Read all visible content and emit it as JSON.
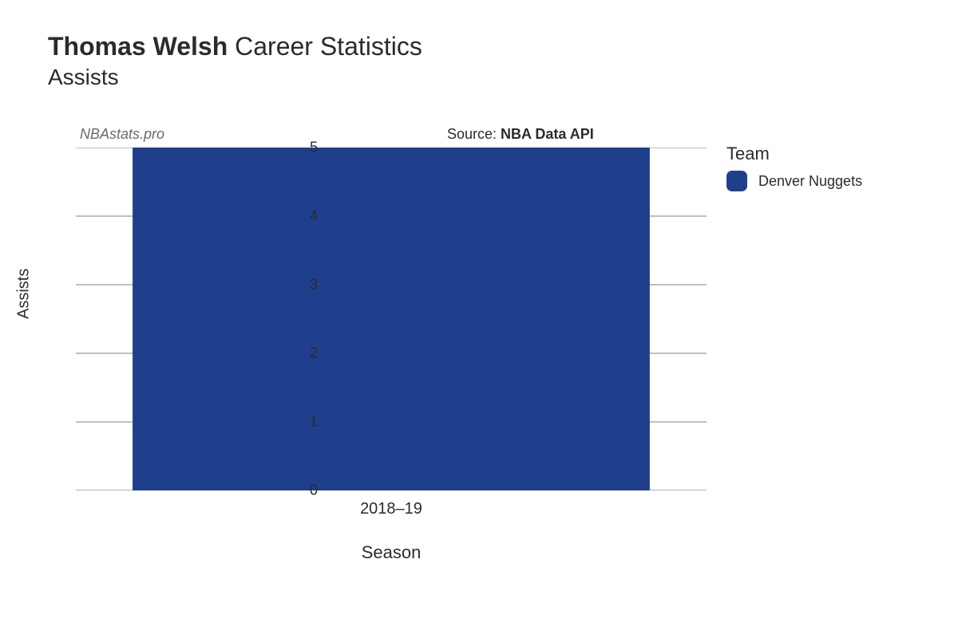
{
  "title": {
    "player_name": "Thomas Welsh",
    "suffix": "Career Statistics",
    "subtitle": "Assists"
  },
  "watermark": "NBAstats.pro",
  "source": {
    "prefix": "Source: ",
    "name": "NBA Data API"
  },
  "chart": {
    "type": "bar",
    "background_color": "#ffffff",
    "grid_color": "#808080",
    "axis_line_color": "#808080",
    "text_color": "#2b2b2b",
    "y_axis": {
      "label": "Assists",
      "min": 0,
      "max": 5,
      "ticks": [
        0,
        1,
        2,
        3,
        4,
        5
      ],
      "label_fontsize": 20,
      "tick_fontsize": 18
    },
    "x_axis": {
      "label": "Season",
      "categories": [
        "2018–19"
      ],
      "label_fontsize": 22,
      "tick_fontsize": 20
    },
    "series": [
      {
        "category": "2018–19",
        "value": 5,
        "color": "#1f3f8c",
        "team": "Denver Nuggets"
      }
    ],
    "bar_width_ratio": 0.82
  },
  "legend": {
    "title": "Team",
    "items": [
      {
        "label": "Denver Nuggets",
        "color": "#1f3f8c"
      }
    ]
  }
}
